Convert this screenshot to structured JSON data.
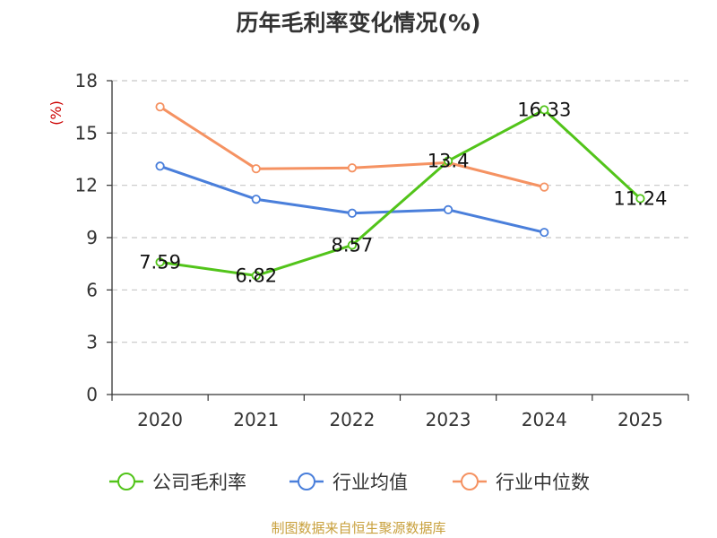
{
  "title": "历年毛利率变化情况(%)",
  "source": "制图数据来自恒生聚源数据库",
  "chart_data": {
    "type": "line",
    "title": "历年毛利率变化情况(%)",
    "ylabel": "(%)",
    "xlabel": "",
    "categories": [
      "2020",
      "2021",
      "2022",
      "2023",
      "2024",
      "2025"
    ],
    "ylim": [
      0,
      18
    ],
    "yticks": [
      0,
      3,
      6,
      9,
      12,
      15,
      18
    ],
    "grid": true,
    "legend_position": "bottom",
    "series": [
      {
        "name": "公司毛利率",
        "color": "#52c41a",
        "values": [
          7.59,
          6.82,
          8.57,
          13.4,
          16.33,
          11.24
        ],
        "labels": [
          "7.59",
          "6.82",
          "8.57",
          "13.4",
          "16.33",
          "11.24"
        ]
      },
      {
        "name": "行业均值",
        "color": "#4a7fdb",
        "values": [
          13.1,
          11.2,
          10.4,
          10.6,
          9.3,
          null
        ]
      },
      {
        "name": "行业中位数",
        "color": "#f59262",
        "values": [
          16.5,
          12.95,
          13.0,
          13.3,
          11.9,
          null
        ]
      }
    ]
  }
}
